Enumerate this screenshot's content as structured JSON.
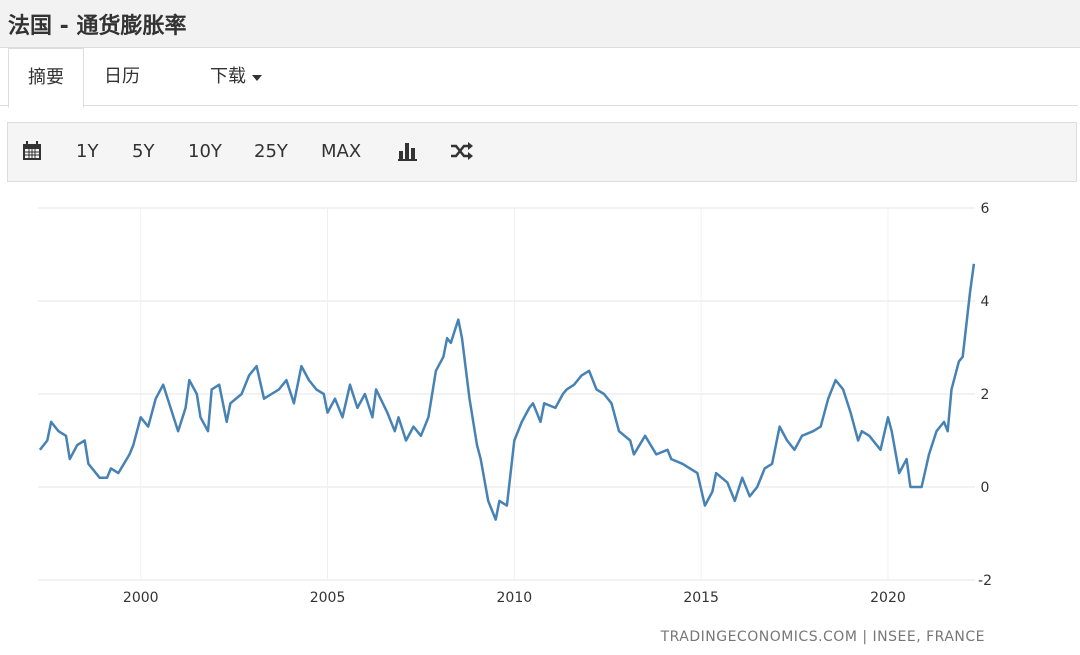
{
  "header": {
    "title": "法国 - 通货膨胀率"
  },
  "tabs": [
    "摘要",
    "日历",
    "下载"
  ],
  "toolbar": {
    "ranges": [
      "1Y",
      "5Y",
      "10Y",
      "25Y",
      "MAX"
    ]
  },
  "chart_data": {
    "type": "line",
    "source": "TRADINGECONOMICS.COM | INSEE, FRANCE",
    "xlim": [
      1997.25,
      2022.33
    ],
    "xticks": [
      2000,
      2005,
      2010,
      2015,
      2020
    ],
    "ylim": [
      -2,
      6
    ],
    "yticks": [
      -2,
      0,
      2,
      4,
      6
    ],
    "grid": true,
    "x": [
      1997.3,
      1997.5,
      1997.6,
      1997.8,
      1998.0,
      1998.1,
      1998.3,
      1998.5,
      1998.6,
      1998.9,
      1999.1,
      1999.2,
      1999.4,
      1999.7,
      1999.8,
      2000.0,
      2000.2,
      2000.4,
      2000.6,
      2000.8,
      2001.0,
      2001.2,
      2001.3,
      2001.5,
      2001.6,
      2001.8,
      2001.9,
      2002.1,
      2002.3,
      2002.4,
      2002.7,
      2002.9,
      2003.1,
      2003.3,
      2003.5,
      2003.7,
      2003.9,
      2004.1,
      2004.3,
      2004.5,
      2004.7,
      2004.9,
      2005.0,
      2005.2,
      2005.4,
      2005.6,
      2005.8,
      2006.0,
      2006.2,
      2006.3,
      2006.6,
      2006.8,
      2006.9,
      2007.1,
      2007.3,
      2007.5,
      2007.7,
      2007.9,
      2008.1,
      2008.2,
      2008.3,
      2008.5,
      2008.6,
      2008.8,
      2009.0,
      2009.1,
      2009.3,
      2009.5,
      2009.6,
      2009.8,
      2010.0,
      2010.2,
      2010.4,
      2010.5,
      2010.7,
      2010.8,
      2011.1,
      2011.3,
      2011.4,
      2011.6,
      2011.8,
      2012.0,
      2012.2,
      2012.4,
      2012.6,
      2012.8,
      2013.1,
      2013.2,
      2013.5,
      2013.8,
      2014.1,
      2014.2,
      2014.5,
      2014.7,
      2014.9,
      2015.1,
      2015.3,
      2015.4,
      2015.7,
      2015.9,
      2016.1,
      2016.3,
      2016.5,
      2016.7,
      2016.9,
      2017.1,
      2017.3,
      2017.5,
      2017.7,
      2018.0,
      2018.2,
      2018.4,
      2018.6,
      2018.8,
      2019.0,
      2019.2,
      2019.3,
      2019.5,
      2019.8,
      2020.0,
      2020.1,
      2020.3,
      2020.5,
      2020.6,
      2020.9,
      2021.1,
      2021.3,
      2021.5,
      2021.6,
      2021.7,
      2021.9,
      2022.0,
      2022.2,
      2022.3
    ],
    "series": [
      {
        "name": "France Inflation",
        "color": "#4682b4",
        "values": [
          0.8,
          1.0,
          1.4,
          1.2,
          1.1,
          0.6,
          0.9,
          1.0,
          0.5,
          0.2,
          0.2,
          0.4,
          0.3,
          0.7,
          0.9,
          1.5,
          1.3,
          1.9,
          2.2,
          1.7,
          1.2,
          1.7,
          2.3,
          2.0,
          1.5,
          1.2,
          2.1,
          2.2,
          1.4,
          1.8,
          2.0,
          2.4,
          2.6,
          1.9,
          2.0,
          2.1,
          2.3,
          1.8,
          2.6,
          2.3,
          2.1,
          2.0,
          1.6,
          1.9,
          1.5,
          2.2,
          1.7,
          2.0,
          1.5,
          2.1,
          1.6,
          1.2,
          1.5,
          1.0,
          1.3,
          1.1,
          1.5,
          2.5,
          2.8,
          3.2,
          3.1,
          3.6,
          3.2,
          1.9,
          0.9,
          0.6,
          -0.3,
          -0.7,
          -0.3,
          -0.4,
          1.0,
          1.4,
          1.7,
          1.8,
          1.4,
          1.8,
          1.7,
          2.0,
          2.1,
          2.2,
          2.4,
          2.5,
          2.1,
          2.0,
          1.8,
          1.2,
          1.0,
          0.7,
          1.1,
          0.7,
          0.8,
          0.6,
          0.5,
          0.4,
          0.3,
          -0.4,
          -0.1,
          0.3,
          0.1,
          -0.3,
          0.2,
          -0.2,
          0.0,
          0.4,
          0.5,
          1.3,
          1.0,
          0.8,
          1.1,
          1.2,
          1.3,
          1.9,
          2.3,
          2.1,
          1.6,
          1.0,
          1.2,
          1.1,
          0.8,
          1.5,
          1.2,
          0.3,
          0.6,
          0.0,
          0.0,
          0.7,
          1.2,
          1.4,
          1.2,
          2.1,
          2.7,
          2.8,
          4.2,
          4.8
        ]
      }
    ]
  }
}
